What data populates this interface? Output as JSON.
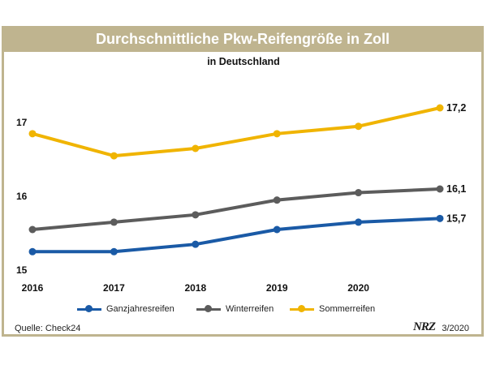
{
  "title": "Durchschnittliche Pkw-Reifengröße in Zoll",
  "subtitle": "in Deutschland",
  "source": "Quelle: Check24",
  "publisher_logo": "NRZ",
  "date": "3/2020",
  "colors": {
    "frame": "#bfb48f",
    "ganzjahresreifen": "#1a5aa6",
    "winterreifen": "#5c5c5c",
    "sommerreifen": "#f0b400"
  },
  "chart_data": {
    "type": "line",
    "x": [
      0,
      1,
      2,
      3,
      4,
      5
    ],
    "x_ticks": [
      0,
      1,
      2,
      3,
      4
    ],
    "x_tick_labels": [
      "2016",
      "2017",
      "2018",
      "2019",
      "2020"
    ],
    "xlim": [
      0,
      5
    ],
    "ylim": [
      15,
      17.2
    ],
    "y_ticks": [
      15,
      16,
      17
    ],
    "y_tick_labels": [
      "15",
      "16",
      "17"
    ],
    "series": [
      {
        "name": "Ganzjahresreifen",
        "color": "#1a5aa6",
        "values": [
          15.25,
          15.25,
          15.35,
          15.55,
          15.65,
          15.7
        ],
        "end_label": "15,7"
      },
      {
        "name": "Winterreifen",
        "color": "#5c5c5c",
        "values": [
          15.55,
          15.65,
          15.75,
          15.95,
          16.05,
          16.1
        ],
        "end_label": "16,1"
      },
      {
        "name": "Sommerreifen",
        "color": "#f0b400",
        "values": [
          16.85,
          16.55,
          16.65,
          16.85,
          16.95,
          17.2
        ],
        "end_label": "17,2"
      }
    ],
    "xlabel": "",
    "ylabel": "",
    "grid": false,
    "legend_position": "bottom"
  }
}
